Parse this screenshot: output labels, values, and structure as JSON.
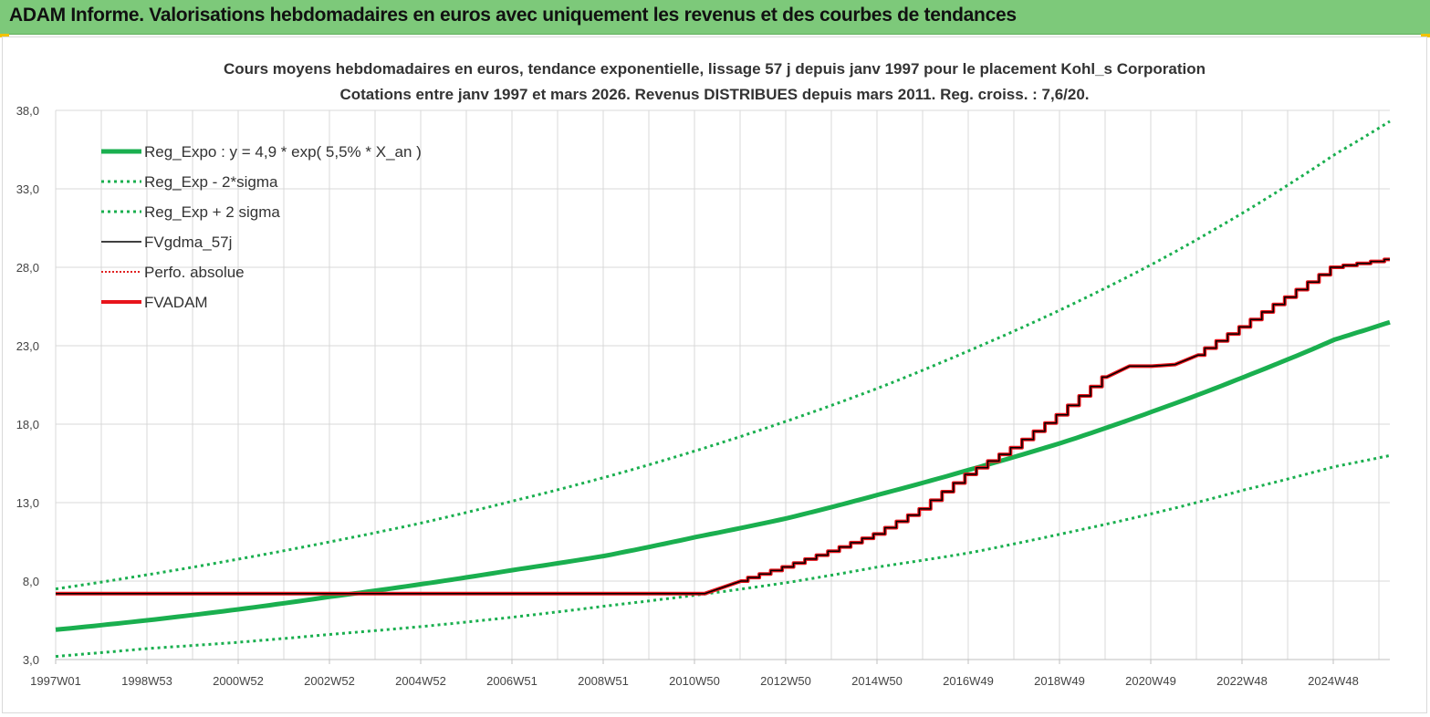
{
  "header": {
    "title": "ADAM Informe. Valorisations hebdomadaires en euros avec uniquement les revenus et des courbes de tendances"
  },
  "colors": {
    "header_bg": "#7dc97a",
    "trend": "#1aaf4f",
    "band": "#1aaf4f",
    "fvgdma": "#000000",
    "perfo": "#e02020",
    "fvadam": "#e8141b",
    "grid": "#d9d9d9"
  },
  "chart_data": {
    "type": "line",
    "title": "Cours moyens hebdomadaires en euros, tendance exponentielle, lissage 57 j depuis janv 1997 pour le placement Kohl_s Corporation",
    "subtitle": "Cotations entre janv 1997 et mars 2026. Revenus DISTRIBUES depuis mars 2011. Reg. croiss. : 7,6/20.",
    "xlabel": "",
    "ylabel": "",
    "x_tick_labels": [
      "1997W01",
      "1998W53",
      "2000W52",
      "2002W52",
      "2004W52",
      "2006W51",
      "2008W51",
      "2010W50",
      "2012W50",
      "2014W50",
      "2016W49",
      "2018W49",
      "2020W49",
      "2022W48",
      "2024W48"
    ],
    "y_tick_labels": [
      "3,0",
      "8,0",
      "13,0",
      "18,0",
      "23,0",
      "28,0",
      "33,0",
      "38,0"
    ],
    "ylim": [
      3.0,
      38.0
    ],
    "xlim_years": [
      1997.0,
      2026.2
    ],
    "grid": true,
    "legend_position": "top-left",
    "series": [
      {
        "name": "Reg_Expo : y = 4,9 * exp( 5,5% *  X_an )",
        "style": "solid-thick",
        "x": [
          1997.0,
          1999.0,
          2001.0,
          2003.0,
          2005.0,
          2007.0,
          2009.0,
          2011.0,
          2013.0,
          2015.0,
          2017.0,
          2019.0,
          2021.0,
          2023.0,
          2025.0,
          2026.2
        ],
        "y": [
          4.9,
          5.5,
          6.2,
          7.0,
          7.8,
          8.7,
          9.6,
          10.8,
          12.0,
          13.5,
          15.1,
          16.8,
          18.8,
          21.0,
          23.4,
          24.5
        ]
      },
      {
        "name": "Reg_Exp - 2*sigma",
        "style": "dotted",
        "x": [
          1997.0,
          1999.0,
          2001.0,
          2003.0,
          2005.0,
          2007.0,
          2009.0,
          2011.0,
          2013.0,
          2015.0,
          2017.0,
          2019.0,
          2021.0,
          2023.0,
          2025.0,
          2026.2
        ],
        "y": [
          3.2,
          3.7,
          4.1,
          4.6,
          5.1,
          5.7,
          6.4,
          7.1,
          7.9,
          8.9,
          9.8,
          11.0,
          12.3,
          13.8,
          15.3,
          16.0
        ]
      },
      {
        "name": "Reg_Exp + 2 sigma",
        "style": "dotted",
        "x": [
          1997.0,
          1999.0,
          2001.0,
          2003.0,
          2005.0,
          2007.0,
          2009.0,
          2011.0,
          2013.0,
          2015.0,
          2017.0,
          2019.0,
          2021.0,
          2023.0,
          2025.0,
          2026.2
        ],
        "y": [
          7.5,
          8.4,
          9.4,
          10.5,
          11.7,
          13.1,
          14.6,
          16.3,
          18.2,
          20.3,
          22.7,
          25.3,
          28.2,
          31.5,
          35.2,
          37.3
        ]
      },
      {
        "name": "FVgdma_57j",
        "style": "solid-thin",
        "x": [
          1997.0,
          2011.2,
          2012.0,
          2013.0,
          2014.0,
          2015.0,
          2016.0,
          2017.0,
          2018.0,
          2019.0,
          2020.0,
          2020.5,
          2021.0,
          2021.5,
          2022.0,
          2023.0,
          2024.0,
          2025.0,
          2026.2
        ],
        "y": [
          7.2,
          7.2,
          8.0,
          8.9,
          9.9,
          11.0,
          12.6,
          14.8,
          16.5,
          18.6,
          21.0,
          21.7,
          21.7,
          21.8,
          22.4,
          24.2,
          26.1,
          28.0,
          28.5
        ]
      },
      {
        "name": "Perfo. absolue",
        "style": "dotted",
        "x": [],
        "y": []
      },
      {
        "name": "FVADAM",
        "style": "solid-thick",
        "x": [
          1997.0,
          2011.2,
          2012.0,
          2013.0,
          2014.0,
          2015.0,
          2016.0,
          2017.0,
          2018.0,
          2019.0,
          2020.0,
          2020.5,
          2021.0,
          2021.5,
          2022.0,
          2023.0,
          2024.0,
          2025.0,
          2026.2
        ],
        "y": [
          7.2,
          7.2,
          8.0,
          8.9,
          9.9,
          11.0,
          12.6,
          14.8,
          16.5,
          18.6,
          21.0,
          21.7,
          21.7,
          21.8,
          22.4,
          24.2,
          26.1,
          28.0,
          28.5
        ]
      }
    ]
  }
}
